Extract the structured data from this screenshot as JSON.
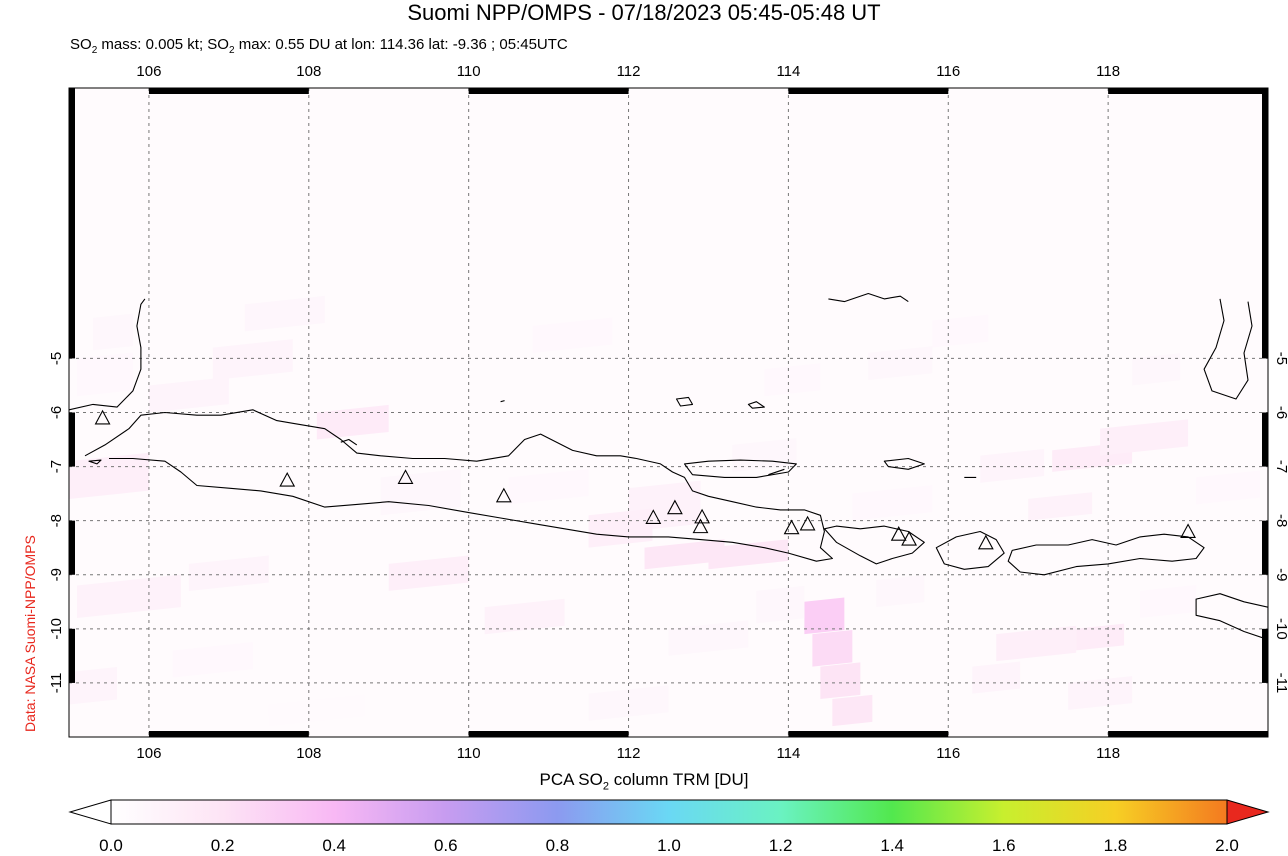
{
  "title": "Suomi NPP/OMPS - 07/18/2023 05:45-05:48 UT",
  "subtitle": {
    "p1": "SO",
    "s1": "2",
    "p2": " mass: 0.005 kt; SO",
    "s2": "2",
    "p3": " max: 0.55 DU at lon: 114.36 lat: -9.36 ; 05:45UTC"
  },
  "credit": "Data: NASA Suomi-NPP/OMPS",
  "map": {
    "lon_range": [
      105,
      120
    ],
    "lat_range": [
      -12,
      0
    ],
    "lon_ticks": [
      "106",
      "108",
      "110",
      "112",
      "114",
      "116",
      "118"
    ],
    "lat_ticks": [
      "-5",
      "-6",
      "-7",
      "-8",
      "-9",
      "-10",
      "-11"
    ],
    "gridlines": true,
    "volcano_marker": "triangle-icon",
    "volcanoes": [
      [
        105.42,
        -6.1
      ],
      [
        107.73,
        -7.25
      ],
      [
        109.21,
        -7.2
      ],
      [
        110.44,
        -7.54
      ],
      [
        112.31,
        -7.94
      ],
      [
        112.58,
        -7.76
      ],
      [
        112.92,
        -7.93
      ],
      [
        112.9,
        -8.11
      ],
      [
        114.04,
        -8.13
      ],
      [
        114.24,
        -8.06
      ],
      [
        115.38,
        -8.25
      ],
      [
        115.51,
        -8.34
      ],
      [
        116.47,
        -8.41
      ],
      [
        119.0,
        -8.2
      ]
    ]
  },
  "colorbar": {
    "title_p1": "PCA SO",
    "title_sub": "2",
    "title_p2": " column TRM [DU]",
    "ticks": [
      "0.0",
      "0.2",
      "0.4",
      "0.6",
      "0.8",
      "1.0",
      "1.2",
      "1.4",
      "1.6",
      "1.8",
      "2.0"
    ],
    "colors": [
      "#ffffff",
      "#fde4f5",
      "#f8b8f4",
      "#c79cf0",
      "#8c9af0",
      "#6ad8f4",
      "#6af2c2",
      "#52e84e",
      "#c8ef2e",
      "#f6cf24",
      "#f47a20",
      "#e8281e"
    ]
  },
  "so2_cells": [
    [
      105.3,
      -4.25,
      0.5,
      0.6,
      0.06
    ],
    [
      105.1,
      -5.0,
      0.7,
      0.7,
      0.05
    ],
    [
      106.0,
      -5.5,
      1.0,
      0.5,
      0.08
    ],
    [
      105.0,
      -6.9,
      1.0,
      0.7,
      0.12
    ],
    [
      106.8,
      -4.8,
      1.0,
      0.6,
      0.08
    ],
    [
      107.2,
      -4.0,
      1.0,
      0.5,
      0.07
    ],
    [
      108.1,
      -6.0,
      0.9,
      0.5,
      0.15
    ],
    [
      108.9,
      -7.2,
      1.0,
      0.7,
      0.06
    ],
    [
      110.5,
      -7.2,
      1.0,
      0.5,
      0.05
    ],
    [
      110.8,
      -4.4,
      1.0,
      0.5,
      0.05
    ],
    [
      112.0,
      -7.4,
      0.9,
      0.8,
      0.1
    ],
    [
      111.5,
      -7.9,
      0.8,
      0.6,
      0.12
    ],
    [
      112.2,
      -8.5,
      1.0,
      0.4,
      0.18
    ],
    [
      113.0,
      -8.5,
      1.0,
      0.4,
      0.18
    ],
    [
      114.2,
      -9.5,
      0.5,
      0.6,
      0.3
    ],
    [
      114.3,
      -10.1,
      0.5,
      0.6,
      0.24
    ],
    [
      114.4,
      -10.7,
      0.5,
      0.6,
      0.2
    ],
    [
      114.55,
      -11.3,
      0.5,
      0.5,
      0.18
    ],
    [
      109.0,
      -8.8,
      1.0,
      0.5,
      0.12
    ],
    [
      110.2,
      -9.6,
      1.0,
      0.5,
      0.1
    ],
    [
      105.1,
      -9.2,
      1.3,
      0.6,
      0.1
    ],
    [
      106.5,
      -8.8,
      1.0,
      0.5,
      0.08
    ],
    [
      115.0,
      -4.9,
      0.8,
      0.5,
      0.06
    ],
    [
      115.8,
      -4.3,
      0.7,
      0.5,
      0.05
    ],
    [
      116.4,
      -6.8,
      0.8,
      0.5,
      0.08
    ],
    [
      117.3,
      -6.7,
      1.0,
      0.4,
      0.14
    ],
    [
      117.9,
      -6.3,
      1.1,
      0.5,
      0.12
    ],
    [
      117.0,
      -7.6,
      0.8,
      0.4,
      0.1
    ],
    [
      116.6,
      -10.1,
      1.0,
      0.5,
      0.12
    ],
    [
      117.6,
      -10.0,
      0.6,
      0.4,
      0.14
    ],
    [
      116.3,
      -10.7,
      0.6,
      0.5,
      0.08
    ],
    [
      117.5,
      -11.0,
      0.8,
      0.5,
      0.08
    ],
    [
      115.1,
      -9.1,
      0.6,
      0.5,
      0.06
    ],
    [
      105.0,
      -10.8,
      0.6,
      0.6,
      0.08
    ],
    [
      106.3,
      -10.4,
      1.0,
      0.5,
      0.05
    ],
    [
      118.3,
      -5.0,
      0.6,
      0.5,
      0.06
    ],
    [
      119.1,
      -7.2,
      0.8,
      0.5,
      0.05
    ],
    [
      113.3,
      -6.6,
      0.8,
      0.5,
      0.06
    ],
    [
      113.7,
      -5.2,
      0.7,
      0.5,
      0.05
    ],
    [
      114.8,
      -7.5,
      1.0,
      0.5,
      0.05
    ],
    [
      111.5,
      -11.2,
      1.0,
      0.5,
      0.06
    ],
    [
      112.5,
      -10.0,
      1.0,
      0.5,
      0.06
    ],
    [
      118.4,
      -9.3,
      0.7,
      0.5,
      0.05
    ],
    [
      107.5,
      -11.4,
      1.2,
      0.4,
      0.04
    ],
    [
      113.6,
      -9.3,
      0.6,
      0.6,
      0.06
    ]
  ]
}
